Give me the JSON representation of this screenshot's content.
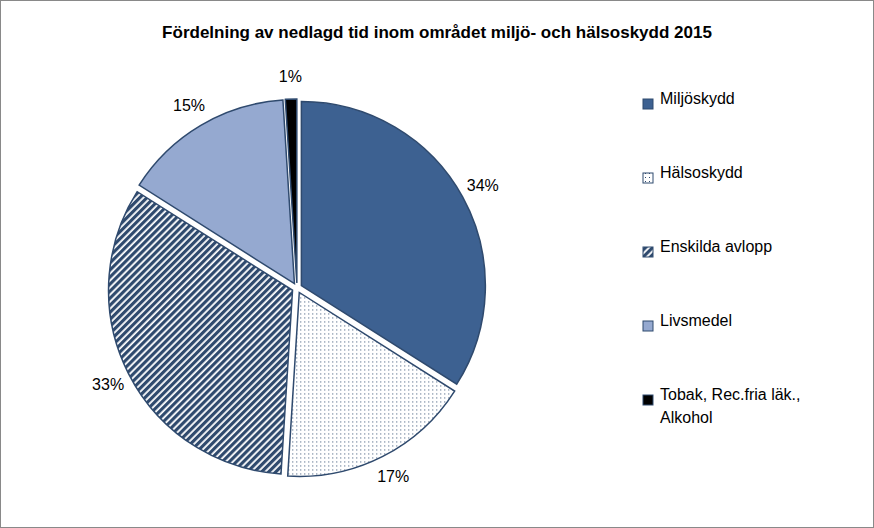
{
  "chart_data": {
    "type": "pie",
    "title": "Fördelning av nedlagd tid inom området miljö- och hälsoskydd 2015",
    "categories": [
      "Miljöskydd",
      "Hälsoskydd",
      "Enskilda avlopp",
      "Livsmedel",
      "Tobak, Rec.fria läk., Alkohol"
    ],
    "values": [
      34,
      17,
      33,
      15,
      1
    ],
    "value_labels": [
      "34%",
      "17%",
      "33%",
      "15%",
      "1%"
    ],
    "colors": [
      "#3d6191",
      "#ffffff",
      "#2f4a6e",
      "#95a9d0",
      "#000000"
    ],
    "legend": "right",
    "data_labels": true
  }
}
